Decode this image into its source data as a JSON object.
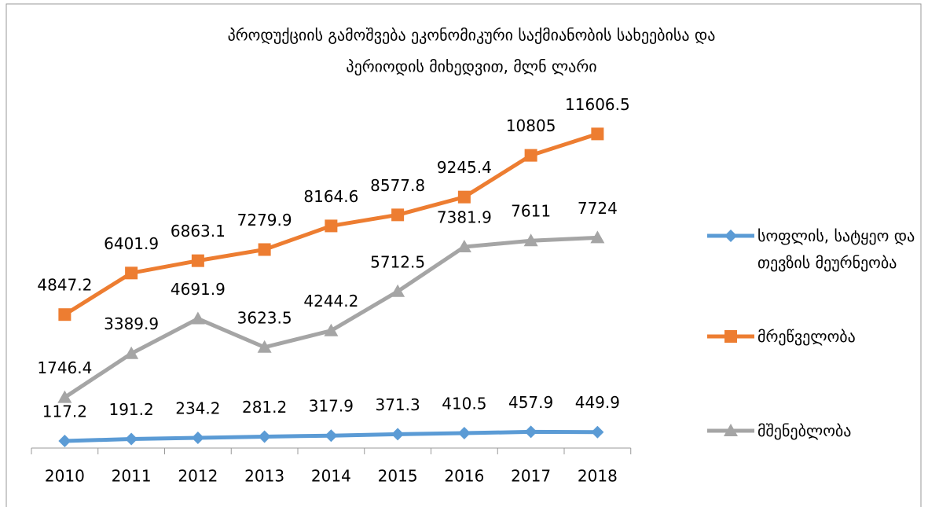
{
  "chart_data": {
    "type": "line",
    "title": [
      "პროდუქციის გამოშვება ეკონომიკური საქმიანობის სახეებისა და",
      "პერიოდის მიხედვით, მლნ ლარი"
    ],
    "categories": [
      "2010",
      "2011",
      "2012",
      "2013",
      "2014",
      "2015",
      "2016",
      "2017",
      "2018"
    ],
    "series": [
      {
        "name": "სოფლის, სატყეო და თევზის მეურნეობა",
        "color": "#5b9bd5",
        "marker": "diamond",
        "values": [
          117.2,
          191.2,
          234.2,
          281.2,
          317.9,
          371.3,
          410.5,
          457.9,
          449.9
        ]
      },
      {
        "name": "მრეწველობა",
        "color": "#ed7d31",
        "marker": "square",
        "values": [
          4847.2,
          6401.9,
          6863.1,
          7279.9,
          8164.6,
          8577.8,
          9245.4,
          10805,
          11606.5
        ]
      },
      {
        "name": "მშენებლობა",
        "color": "#a5a5a5",
        "marker": "triangle",
        "values": [
          1746.4,
          3389.9,
          4691.9,
          3623.5,
          4244.2,
          5712.5,
          7381.9,
          7611,
          7724
        ]
      }
    ],
    "ylim": [
      0,
      12000
    ],
    "grid": false,
    "legend": "right"
  }
}
